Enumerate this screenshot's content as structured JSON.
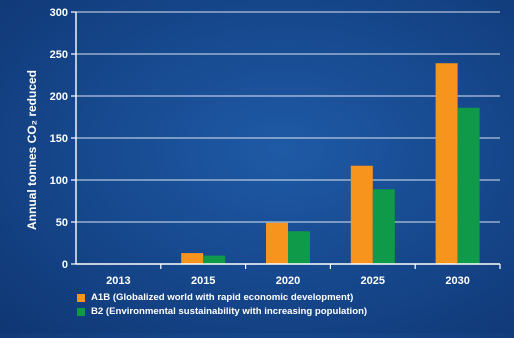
{
  "chart_data": {
    "type": "bar",
    "categories": [
      "2013",
      "2015",
      "2020",
      "2025",
      "2030"
    ],
    "series": [
      {
        "name": "A1B (Globalized world with rapid economic development)",
        "values": [
          0,
          13,
          49,
          117,
          239
        ],
        "color": "#f7941d"
      },
      {
        "name": "B2 (Environmental sustainability with increasing population)",
        "values": [
          0,
          10,
          39,
          89,
          186
        ],
        "color": "#0e9a48"
      }
    ],
    "ylabel": "Annual tonnes CO₂ reduced",
    "xlabel": "",
    "ylim": [
      0,
      300
    ],
    "yticks": [
      0,
      50,
      100,
      150,
      200,
      250,
      300
    ],
    "grid": true,
    "legend_position": "bottom"
  }
}
